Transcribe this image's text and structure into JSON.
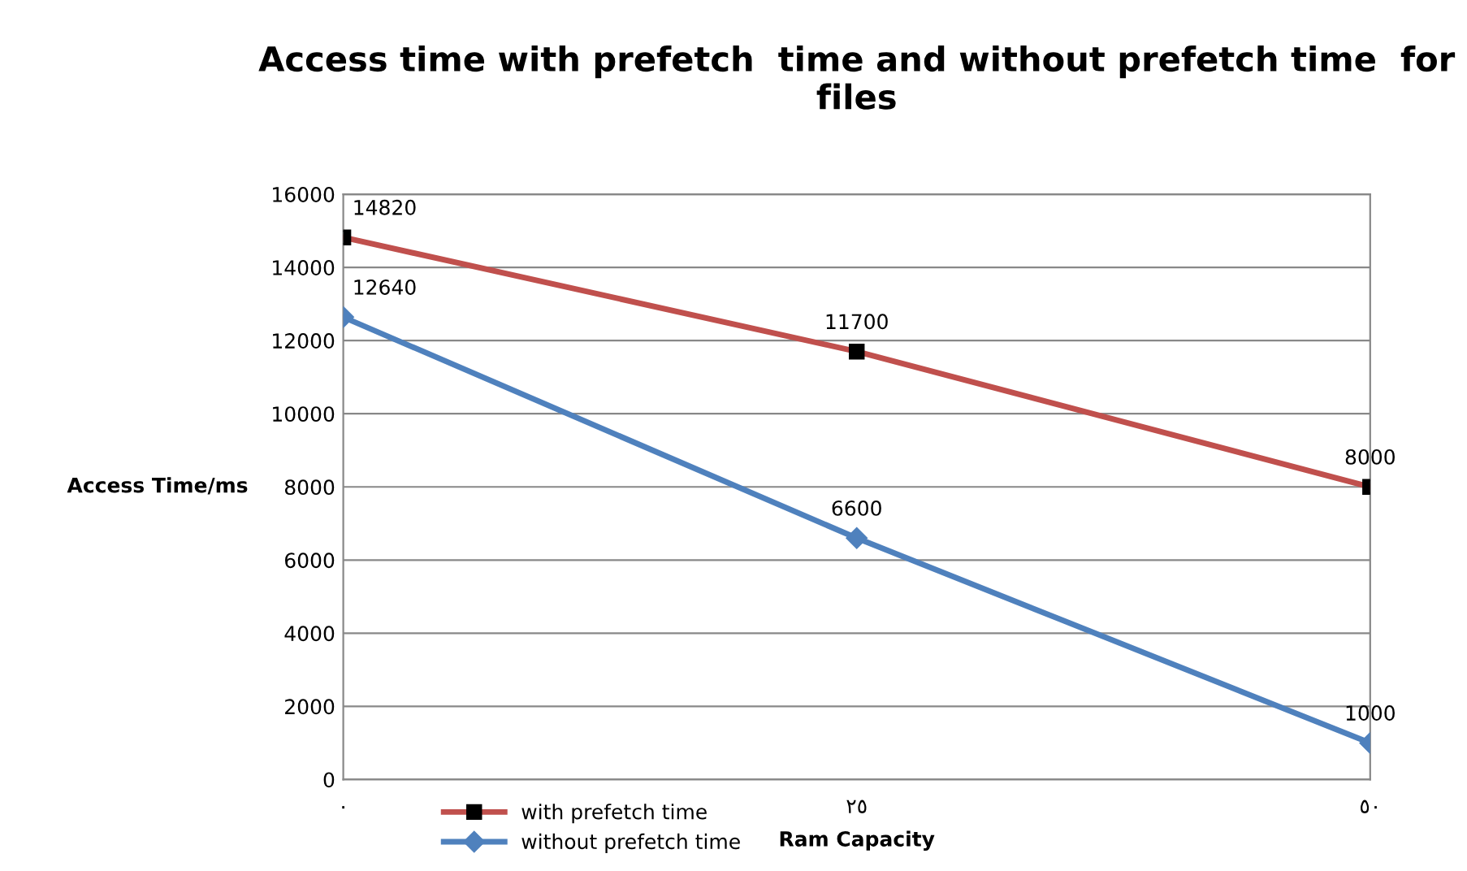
{
  "chart_data": {
    "type": "line",
    "title": "Access time with prefetch  time and without prefetch time  for files",
    "xlabel": "Ram Capacity",
    "ylabel": "Access Time/ms",
    "categories": [
      "٠",
      "٢٥",
      "٥٠"
    ],
    "series": [
      {
        "name": "with prefetch time",
        "color": "#c0504d",
        "marker": "square",
        "values": [
          14820,
          11700,
          8000
        ]
      },
      {
        "name": "without prefetch time",
        "color": "#4f81bd",
        "marker": "diamond",
        "values": [
          12640,
          6600,
          1000
        ]
      }
    ],
    "ylim": [
      0,
      16000
    ],
    "yticks": [
      0,
      2000,
      4000,
      6000,
      8000,
      10000,
      12000,
      14000,
      16000
    ],
    "grid": "y",
    "legend": "bottom left",
    "data_labels": true
  }
}
